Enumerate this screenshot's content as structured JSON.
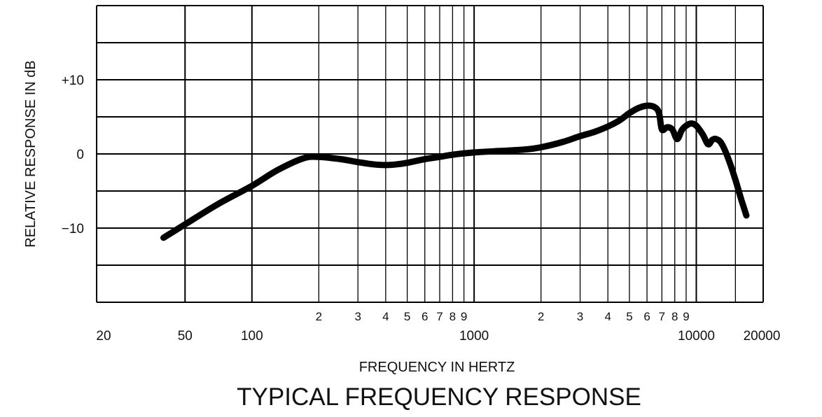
{
  "chart_data": {
    "type": "line",
    "title": "TYPICAL FREQUENCY RESPONSE",
    "xlabel": "FREQUENCY IN HERTZ",
    "ylabel": "RELATIVE RESPONSE IN dB",
    "x_scale": "log",
    "xlim": [
      20,
      20000
    ],
    "ylim": [
      -20,
      20
    ],
    "grid": true,
    "x_major_ticks": [
      {
        "value": 20,
        "label": "20"
      },
      {
        "value": 50,
        "label": "50"
      },
      {
        "value": 100,
        "label": "100"
      },
      {
        "value": 1000,
        "label": "1000"
      },
      {
        "value": 10000,
        "label": "10000"
      },
      {
        "value": 20000,
        "label": "20000"
      }
    ],
    "x_minor_ticks": [
      {
        "value": 200,
        "label": "2"
      },
      {
        "value": 300,
        "label": "3"
      },
      {
        "value": 400,
        "label": "4"
      },
      {
        "value": 500,
        "label": "5"
      },
      {
        "value": 600,
        "label": "6"
      },
      {
        "value": 700,
        "label": "7"
      },
      {
        "value": 800,
        "label": "8"
      },
      {
        "value": 900,
        "label": "9"
      },
      {
        "value": 2000,
        "label": "2"
      },
      {
        "value": 3000,
        "label": "3"
      },
      {
        "value": 4000,
        "label": "4"
      },
      {
        "value": 5000,
        "label": "5"
      },
      {
        "value": 6000,
        "label": "6"
      },
      {
        "value": 7000,
        "label": "7"
      },
      {
        "value": 8000,
        "label": "8"
      },
      {
        "value": 9000,
        "label": "9"
      }
    ],
    "x_unlabeled_gridlines": [
      15000
    ],
    "y_ticks": [
      {
        "value": 10,
        "label": "+10"
      },
      {
        "value": 0,
        "label": "0"
      },
      {
        "value": -10,
        "label": "−10"
      }
    ],
    "y_gridlines": [
      20,
      15,
      10,
      5,
      0,
      -5,
      -10,
      -15,
      -20
    ],
    "series": [
      {
        "color": "#000000",
        "points": [
          [
            40,
            -11.3
          ],
          [
            50,
            -9.5
          ],
          [
            70,
            -6.8
          ],
          [
            100,
            -4.3
          ],
          [
            130,
            -2.2
          ],
          [
            170,
            -0.6
          ],
          [
            200,
            -0.4
          ],
          [
            250,
            -0.7
          ],
          [
            300,
            -1.1
          ],
          [
            350,
            -1.4
          ],
          [
            400,
            -1.5
          ],
          [
            450,
            -1.4
          ],
          [
            500,
            -1.2
          ],
          [
            600,
            -0.7
          ],
          [
            700,
            -0.4
          ],
          [
            800,
            -0.1
          ],
          [
            1000,
            0.2
          ],
          [
            1300,
            0.4
          ],
          [
            1700,
            0.6
          ],
          [
            2000,
            0.9
          ],
          [
            2500,
            1.6
          ],
          [
            3000,
            2.4
          ],
          [
            3500,
            3.0
          ],
          [
            4000,
            3.7
          ],
          [
            4500,
            4.5
          ],
          [
            5000,
            5.5
          ],
          [
            5500,
            6.2
          ],
          [
            6000,
            6.5
          ],
          [
            6500,
            6.3
          ],
          [
            6800,
            5.5
          ],
          [
            7000,
            3.3
          ],
          [
            7400,
            3.6
          ],
          [
            7800,
            3.3
          ],
          [
            8200,
            2.0
          ],
          [
            8600,
            3.2
          ],
          [
            9000,
            3.8
          ],
          [
            9500,
            4.1
          ],
          [
            10000,
            3.8
          ],
          [
            10700,
            2.6
          ],
          [
            11300,
            1.3
          ],
          [
            11800,
            1.9
          ],
          [
            12300,
            2.0
          ],
          [
            13000,
            1.4
          ],
          [
            14000,
            -0.8
          ],
          [
            15000,
            -3.5
          ],
          [
            16000,
            -6.3
          ],
          [
            16800,
            -8.3
          ]
        ]
      }
    ]
  }
}
